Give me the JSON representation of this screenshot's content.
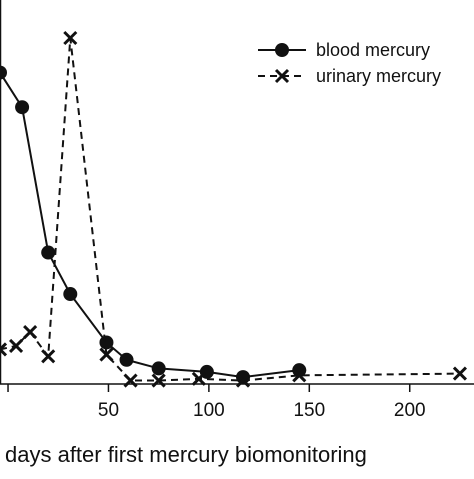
{
  "chart_data": {
    "type": "line",
    "xlabel": "days after first mercury biomonitoring",
    "ylabel": "",
    "xlim": [
      -4,
      232
    ],
    "ylim": [
      0,
      100
    ],
    "xticks": [
      0,
      50,
      100,
      150,
      200
    ],
    "tick_labels": [
      "50",
      "100",
      "150",
      "200"
    ],
    "grid": false,
    "legend_position": "top-right",
    "legend_lines": [
      "solid",
      "dashed"
    ],
    "series": [
      {
        "name": "blood mercury",
        "marker": "filled-circle",
        "line": "solid",
        "x": [
          -4,
          7,
          20,
          31,
          49,
          59,
          75,
          99,
          117,
          145
        ],
        "y": [
          90,
          80,
          38,
          26,
          12,
          7,
          4.5,
          3.5,
          2,
          4
        ]
      },
      {
        "name": "urinary mercury",
        "marker": "x",
        "line": "dashed",
        "x": [
          -4,
          4,
          11,
          20,
          31,
          49,
          61,
          75,
          95,
          117,
          145,
          225
        ],
        "y": [
          10,
          11,
          15,
          8,
          100,
          8.5,
          1,
          1,
          1.5,
          1,
          2.5,
          3
        ]
      }
    ]
  },
  "legend": {
    "blood_label": "blood mercury",
    "urinary_label": "urinary mercury"
  },
  "colors": {
    "line": "#111111",
    "background": "#ffffff"
  }
}
